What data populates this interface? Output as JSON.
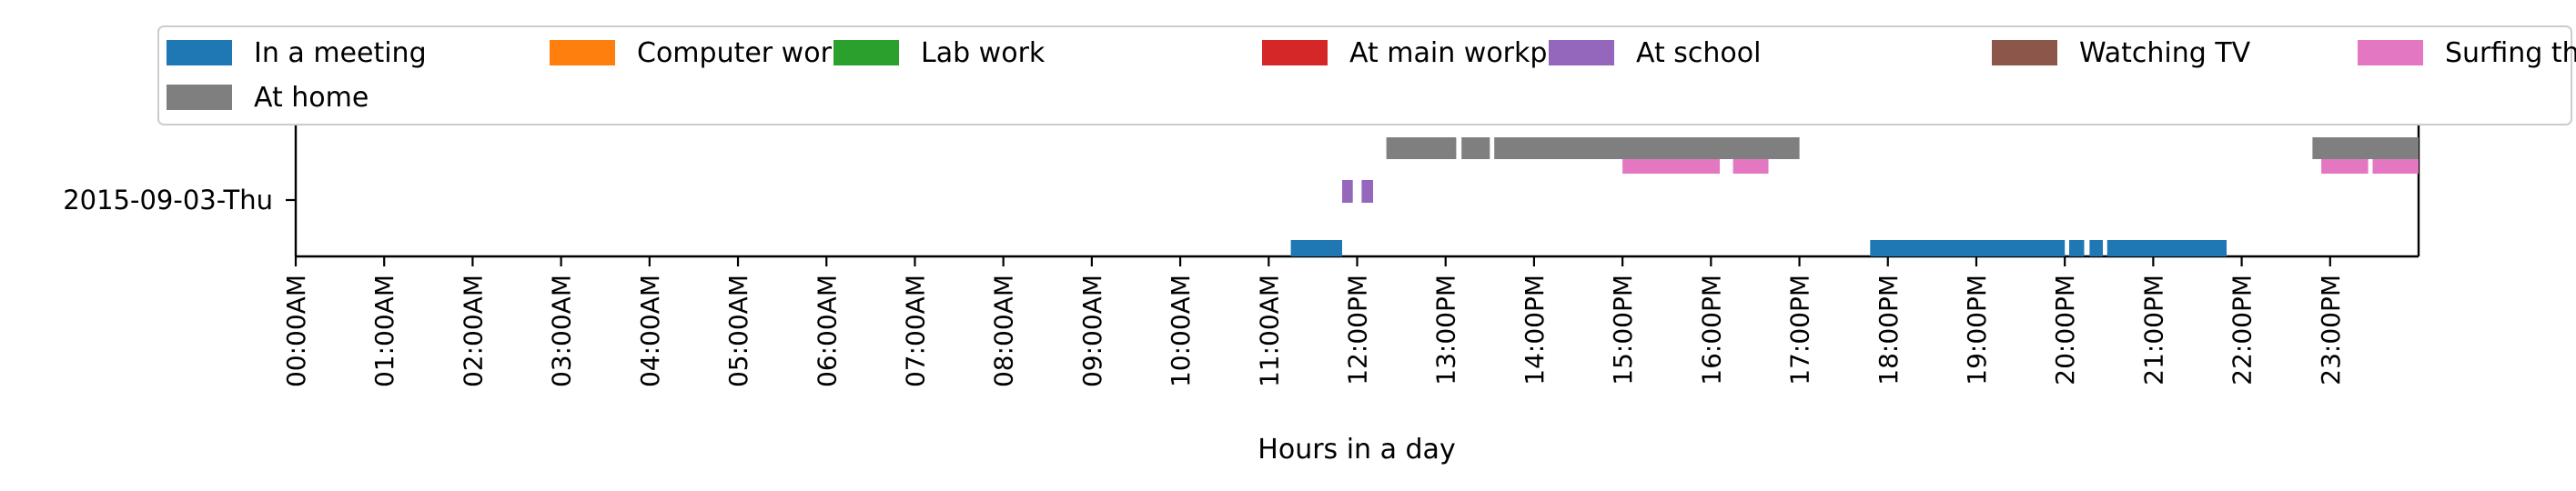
{
  "chart_data": {
    "type": "timeline",
    "xlabel": "Hours in a day",
    "ylabel": "",
    "row_label": "2015-09-03-Thu",
    "x_unit": "hour",
    "xlim": [
      0,
      24
    ],
    "x_ticks": [
      {
        "hour": 0,
        "label": "00:00AM"
      },
      {
        "hour": 1,
        "label": "01:00AM"
      },
      {
        "hour": 2,
        "label": "02:00AM"
      },
      {
        "hour": 3,
        "label": "03:00AM"
      },
      {
        "hour": 4,
        "label": "04:00AM"
      },
      {
        "hour": 5,
        "label": "05:00AM"
      },
      {
        "hour": 6,
        "label": "06:00AM"
      },
      {
        "hour": 7,
        "label": "07:00AM"
      },
      {
        "hour": 8,
        "label": "08:00AM"
      },
      {
        "hour": 9,
        "label": "09:00AM"
      },
      {
        "hour": 10,
        "label": "10:00AM"
      },
      {
        "hour": 11,
        "label": "11:00AM"
      },
      {
        "hour": 12,
        "label": "12:00PM"
      },
      {
        "hour": 13,
        "label": "13:00PM"
      },
      {
        "hour": 14,
        "label": "14:00PM"
      },
      {
        "hour": 15,
        "label": "15:00PM"
      },
      {
        "hour": 16,
        "label": "16:00PM"
      },
      {
        "hour": 17,
        "label": "17:00PM"
      },
      {
        "hour": 18,
        "label": "18:00PM"
      },
      {
        "hour": 19,
        "label": "19:00PM"
      },
      {
        "hour": 20,
        "label": "20:00PM"
      },
      {
        "hour": 21,
        "label": "21:00PM"
      },
      {
        "hour": 22,
        "label": "22:00PM"
      },
      {
        "hour": 23,
        "label": "23:00PM"
      }
    ],
    "legend_position": "top",
    "series": [
      {
        "name": "In a meeting",
        "color": "#1f77b4",
        "intervals": [
          [
            11.25,
            11.83
          ],
          [
            17.8,
            20.0
          ],
          [
            20.05,
            20.22
          ],
          [
            20.28,
            20.43
          ],
          [
            20.48,
            21.83
          ]
        ]
      },
      {
        "name": "Computer work",
        "color": "#ff7f0e",
        "intervals": []
      },
      {
        "name": "Lab work",
        "color": "#2ca02c",
        "intervals": []
      },
      {
        "name": "At main workplace",
        "color": "#d62728",
        "intervals": []
      },
      {
        "name": "At school",
        "color": "#9467bd",
        "intervals": [
          [
            11.83,
            11.95
          ],
          [
            12.05,
            12.18
          ]
        ]
      },
      {
        "name": "Watching TV",
        "color": "#8c564b",
        "intervals": []
      },
      {
        "name": "Surfing the internet",
        "color": "#e377c2",
        "intervals": [
          [
            15.0,
            16.1
          ],
          [
            16.25,
            16.65
          ],
          [
            22.9,
            23.43
          ],
          [
            23.48,
            24.0
          ]
        ]
      },
      {
        "name": "At home",
        "color": "#7f7f7f",
        "intervals": [
          [
            12.33,
            13.12
          ],
          [
            13.18,
            13.5
          ],
          [
            13.55,
            17.0
          ],
          [
            22.8,
            24.0
          ]
        ]
      }
    ]
  }
}
